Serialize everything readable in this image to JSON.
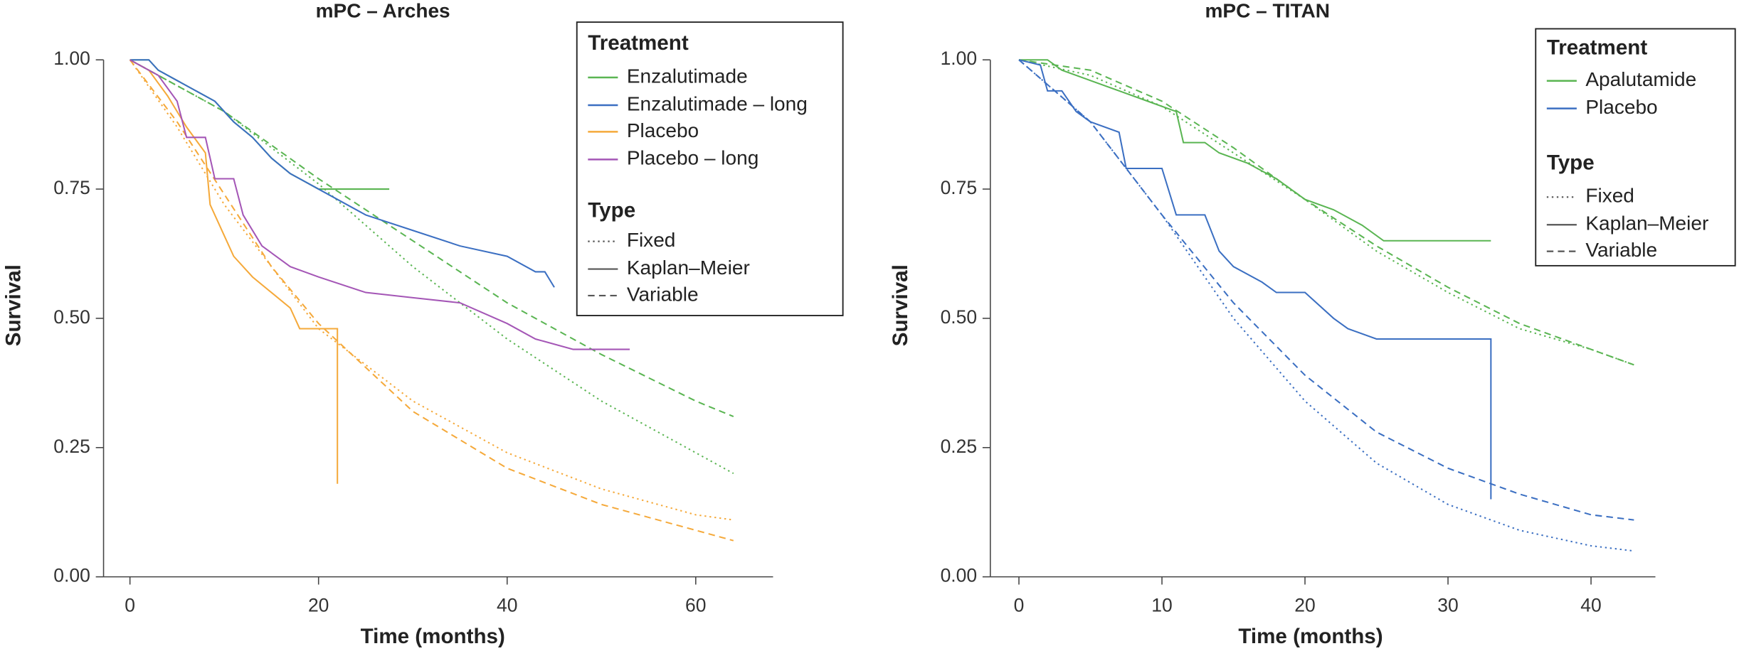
{
  "chart_data": [
    {
      "type": "line",
      "title": "mPC – Arches",
      "x_label": "Time (months)",
      "y_label": "Survival",
      "xlim": [
        -2.8,
        68.2
      ],
      "ylim": [
        0,
        1.05
      ],
      "xticks": [
        0,
        20,
        40,
        60
      ],
      "yticks": [
        {
          "value": 0,
          "label": "0.00"
        },
        {
          "value": 0.25,
          "label": "0.25"
        },
        {
          "value": 0.5,
          "label": "0.50"
        },
        {
          "value": 0.75,
          "label": "0.75"
        },
        {
          "value": 1,
          "label": "1.00"
        }
      ],
      "legend": {
        "treatment": {
          "title": "Treatment",
          "items": [
            {
              "name": "Enzalutimade",
              "color": "#5ab552"
            },
            {
              "name": "Enzalutimade – long",
              "color": "#3b6fc2"
            },
            {
              "name": "Placebo",
              "color": "#f5a93a"
            },
            {
              "name": "Placebo – long",
              "color": "#a456b6"
            }
          ]
        },
        "type": {
          "title": "Type",
          "items": [
            {
              "name": "Fixed",
              "dash": "dotted"
            },
            {
              "name": "Kaplan–Meier",
              "dash": "solid"
            },
            {
              "name": "Variable",
              "dash": "dashed"
            }
          ]
        }
      },
      "series": [
        {
          "treatment": "Enzalutimade",
          "type": "Fixed",
          "x": [
            0,
            10,
            20,
            30,
            40,
            50,
            60,
            64
          ],
          "values": [
            1,
            0.9,
            0.76,
            0.6,
            0.46,
            0.34,
            0.24,
            0.2
          ]
        },
        {
          "treatment": "Enzalutimade",
          "type": "Variable",
          "x": [
            0,
            10,
            20,
            30,
            40,
            50,
            60,
            64
          ],
          "values": [
            1,
            0.9,
            0.77,
            0.65,
            0.53,
            0.43,
            0.34,
            0.31
          ]
        },
        {
          "treatment": "Placebo",
          "type": "Fixed",
          "x": [
            0,
            5,
            10,
            15,
            20,
            30,
            40,
            50,
            60,
            64
          ],
          "values": [
            1,
            0.87,
            0.72,
            0.6,
            0.48,
            0.34,
            0.24,
            0.17,
            0.12,
            0.11
          ]
        },
        {
          "treatment": "Placebo",
          "type": "Variable",
          "x": [
            0,
            5,
            10,
            15,
            20,
            30,
            40,
            50,
            60,
            64
          ],
          "values": [
            1,
            0.88,
            0.74,
            0.6,
            0.49,
            0.32,
            0.21,
            0.14,
            0.09,
            0.07
          ]
        },
        {
          "treatment": "Enzalutimade",
          "type": "Kaplan–Meier",
          "x": [
            0,
            2,
            3,
            5,
            7,
            9,
            11,
            13,
            15,
            17,
            20,
            27.5
          ],
          "values": [
            1,
            1,
            0.98,
            0.96,
            0.94,
            0.92,
            0.88,
            0.85,
            0.81,
            0.78,
            0.75,
            0.75
          ]
        },
        {
          "treatment": "Enzalutimade – long",
          "type": "Kaplan–Meier",
          "x": [
            0,
            2,
            3,
            5,
            7,
            9,
            11,
            13,
            15,
            17,
            20,
            25,
            30,
            35,
            40,
            43,
            44,
            45
          ],
          "values": [
            1,
            1,
            0.98,
            0.96,
            0.94,
            0.92,
            0.88,
            0.85,
            0.81,
            0.78,
            0.75,
            0.7,
            0.67,
            0.64,
            0.62,
            0.59,
            0.59,
            0.56
          ]
        },
        {
          "treatment": "Placebo",
          "type": "Kaplan–Meier",
          "x": [
            0,
            2,
            4,
            6,
            8,
            8.5,
            10,
            11,
            13,
            15,
            17,
            18,
            22,
            22
          ],
          "values": [
            1,
            0.98,
            0.93,
            0.87,
            0.82,
            0.72,
            0.66,
            0.62,
            0.58,
            0.55,
            0.52,
            0.48,
            0.48,
            0.18
          ]
        },
        {
          "treatment": "Placebo – long",
          "type": "Kaplan–Meier",
          "x": [
            0,
            3,
            5,
            6,
            8,
            9,
            11,
            12,
            14,
            17,
            20,
            25,
            30,
            35,
            40,
            43,
            47,
            53
          ],
          "values": [
            1,
            0.97,
            0.92,
            0.85,
            0.85,
            0.77,
            0.77,
            0.7,
            0.64,
            0.6,
            0.58,
            0.55,
            0.54,
            0.53,
            0.49,
            0.46,
            0.44,
            0.44
          ]
        }
      ]
    },
    {
      "type": "line",
      "title": "mPC – TITAN",
      "x_label": "Time (months)",
      "y_label": "Survival",
      "xlim": [
        -2,
        44.5
      ],
      "ylim": [
        0,
        1.05
      ],
      "xticks": [
        0,
        10,
        20,
        30,
        40
      ],
      "yticks": [
        {
          "value": 0,
          "label": "0.00"
        },
        {
          "value": 0.25,
          "label": "0.25"
        },
        {
          "value": 0.5,
          "label": "0.50"
        },
        {
          "value": 0.75,
          "label": "0.75"
        },
        {
          "value": 1,
          "label": "1.00"
        }
      ],
      "legend": {
        "treatment": {
          "title": "Treatment",
          "items": [
            {
              "name": "Apalutamide",
              "color": "#5ab552"
            },
            {
              "name": "Placebo",
              "color": "#3b6fc2"
            }
          ]
        },
        "type": {
          "title": "Type",
          "items": [
            {
              "name": "Fixed",
              "dash": "dotted"
            },
            {
              "name": "Kaplan–Meier",
              "dash": "solid"
            },
            {
              "name": "Variable",
              "dash": "dashed"
            }
          ]
        }
      },
      "series": [
        {
          "treatment": "Apalutamide",
          "type": "Fixed",
          "x": [
            0,
            5,
            10,
            15,
            20,
            25,
            30,
            35,
            40,
            43
          ],
          "values": [
            1,
            0.97,
            0.91,
            0.82,
            0.73,
            0.63,
            0.55,
            0.48,
            0.44,
            0.41
          ]
        },
        {
          "treatment": "Apalutamide",
          "type": "Variable",
          "x": [
            0,
            5,
            10,
            15,
            20,
            25,
            30,
            35,
            40,
            43
          ],
          "values": [
            1,
            0.98,
            0.92,
            0.83,
            0.73,
            0.64,
            0.56,
            0.49,
            0.44,
            0.41
          ]
        },
        {
          "treatment": "Placebo",
          "type": "Fixed",
          "x": [
            0,
            5,
            10,
            15,
            20,
            25,
            30,
            35,
            40,
            43
          ],
          "values": [
            1,
            0.88,
            0.7,
            0.5,
            0.34,
            0.22,
            0.14,
            0.09,
            0.06,
            0.05
          ]
        },
        {
          "treatment": "Placebo",
          "type": "Variable",
          "x": [
            0,
            5,
            10,
            15,
            20,
            25,
            30,
            35,
            40,
            43
          ],
          "values": [
            1,
            0.88,
            0.7,
            0.53,
            0.39,
            0.28,
            0.21,
            0.16,
            0.12,
            0.11
          ]
        },
        {
          "treatment": "Apalutamide",
          "type": "Kaplan–Meier",
          "x": [
            0,
            2,
            3,
            5,
            7,
            9,
            11,
            11.5,
            13,
            14,
            16,
            18,
            20,
            22,
            24,
            25.5,
            33
          ],
          "values": [
            1,
            1,
            0.98,
            0.96,
            0.94,
            0.92,
            0.9,
            0.84,
            0.84,
            0.82,
            0.8,
            0.77,
            0.73,
            0.71,
            0.68,
            0.65,
            0.65
          ]
        },
        {
          "treatment": "Placebo",
          "type": "Kaplan–Meier",
          "x": [
            0,
            1.5,
            2,
            3,
            4,
            5,
            7,
            7.5,
            10,
            11,
            13,
            14,
            15,
            17,
            18,
            20,
            22,
            23,
            25,
            33,
            33
          ],
          "values": [
            1,
            0.99,
            0.94,
            0.94,
            0.9,
            0.88,
            0.86,
            0.79,
            0.79,
            0.7,
            0.7,
            0.63,
            0.6,
            0.57,
            0.55,
            0.55,
            0.5,
            0.48,
            0.46,
            0.46,
            0.15
          ]
        }
      ]
    }
  ]
}
